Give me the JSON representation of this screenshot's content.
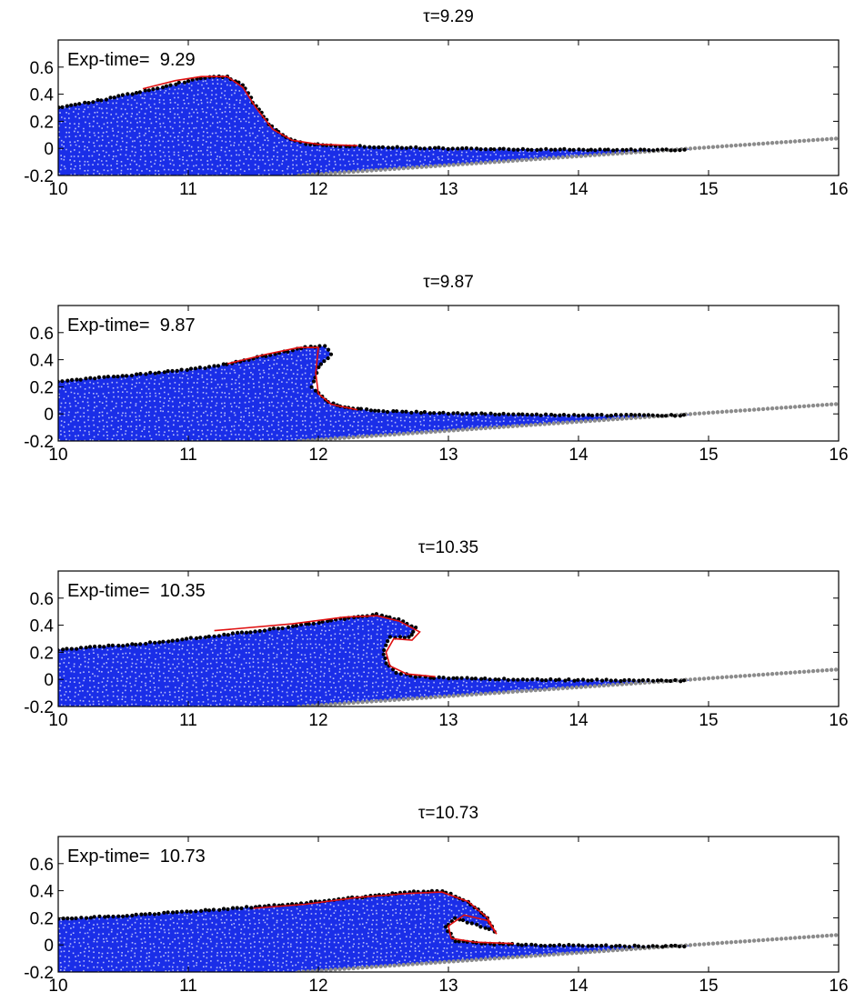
{
  "figure": {
    "xlim": [
      10,
      16
    ],
    "ylim": [
      -0.2,
      0.8
    ],
    "x_ticks": [
      "10",
      "11",
      "12",
      "13",
      "14",
      "15",
      "16"
    ],
    "y_ticks": [
      "-0.2",
      "0",
      "0.2",
      "0.4",
      "0.6"
    ],
    "colors": {
      "fluid_particles": "#1a2ee8",
      "surface_particles": "#000000",
      "bed_particles": "#8c8c8c",
      "experiment_profile": "#e01010",
      "axes": "#000000"
    }
  },
  "chart_data": [
    {
      "type": "scatter",
      "title": "τ=9.29",
      "annotation": "Exp-time=  9.29",
      "bed": {
        "x": [
          11.85,
          16.0
        ],
        "y": [
          -0.2,
          0.074
        ]
      },
      "fluid_end_x": 14.85,
      "free_surface": {
        "x": [
          10.0,
          10.4,
          10.8,
          11.1,
          11.3,
          11.42,
          11.5,
          11.62,
          11.75,
          11.9,
          12.1,
          12.5,
          13.0,
          13.5,
          14.0,
          14.3,
          14.85
        ],
        "y": [
          0.3,
          0.37,
          0.45,
          0.52,
          0.53,
          0.47,
          0.34,
          0.18,
          0.08,
          0.035,
          0.02,
          0.01,
          0.0,
          -0.005,
          -0.01,
          -0.01,
          -0.01
        ]
      },
      "experiment_profile": {
        "x": [
          10.65,
          10.9,
          11.1,
          11.3,
          11.42,
          11.52,
          11.65,
          11.8,
          12.0,
          12.3
        ],
        "y": [
          0.44,
          0.5,
          0.53,
          0.53,
          0.45,
          0.3,
          0.14,
          0.06,
          0.03,
          0.02
        ]
      }
    },
    {
      "type": "scatter",
      "title": "τ=9.87",
      "annotation": "Exp-time=  9.87",
      "bed": {
        "x": [
          11.85,
          16.0
        ],
        "y": [
          -0.2,
          0.074
        ]
      },
      "fluid_end_x": 14.85,
      "free_surface": {
        "x": [
          10.0,
          10.6,
          11.2,
          11.6,
          11.9,
          12.05,
          12.1,
          12.0,
          11.95,
          12.05,
          12.2,
          12.5,
          13.0,
          13.5,
          14.0,
          14.4,
          14.85
        ],
        "y": [
          0.24,
          0.29,
          0.35,
          0.43,
          0.49,
          0.5,
          0.44,
          0.34,
          0.2,
          0.1,
          0.045,
          0.02,
          0.005,
          -0.005,
          -0.01,
          -0.01,
          -0.01
        ]
      },
      "experiment_profile": {
        "x": [
          11.3,
          11.6,
          11.85,
          12.0,
          11.98,
          12.0,
          12.1,
          12.3
        ],
        "y": [
          0.37,
          0.44,
          0.49,
          0.49,
          0.3,
          0.15,
          0.07,
          0.03
        ]
      }
    },
    {
      "type": "scatter",
      "title": "τ=10.35",
      "annotation": "Exp-time=  10.35",
      "bed": {
        "x": [
          11.85,
          16.0
        ],
        "y": [
          -0.2,
          0.074
        ]
      },
      "fluid_end_x": 14.85,
      "free_surface": {
        "x": [
          10.0,
          10.6,
          11.2,
          11.8,
          12.2,
          12.45,
          12.62,
          12.75,
          12.7,
          12.55,
          12.5,
          12.52,
          12.6,
          12.75,
          13.0,
          13.5,
          14.0,
          14.5,
          14.85
        ],
        "y": [
          0.22,
          0.26,
          0.32,
          0.39,
          0.45,
          0.48,
          0.44,
          0.38,
          0.31,
          0.31,
          0.22,
          0.12,
          0.05,
          0.02,
          0.01,
          0.0,
          -0.005,
          -0.01,
          -0.01
        ]
      },
      "experiment_profile": {
        "x": [
          11.2,
          11.8,
          12.2,
          12.45,
          12.62,
          12.78,
          12.72,
          12.58,
          12.52,
          12.55,
          12.68,
          12.9
        ],
        "y": [
          0.36,
          0.41,
          0.46,
          0.47,
          0.43,
          0.35,
          0.29,
          0.3,
          0.2,
          0.1,
          0.04,
          0.02
        ]
      }
    },
    {
      "type": "scatter",
      "title": "τ=10.73",
      "annotation": "Exp-time=  10.73",
      "bed": {
        "x": [
          11.85,
          16.0
        ],
        "y": [
          -0.2,
          0.074
        ]
      },
      "fluid_end_x": 14.85,
      "free_surface": {
        "x": [
          10.0,
          10.6,
          11.2,
          11.8,
          12.3,
          12.7,
          12.95,
          13.15,
          13.3,
          13.35,
          13.05,
          12.98,
          13.05,
          13.25,
          13.6,
          14.0,
          14.5,
          14.85
        ],
        "y": [
          0.19,
          0.22,
          0.26,
          0.3,
          0.35,
          0.39,
          0.4,
          0.32,
          0.2,
          0.1,
          0.2,
          0.13,
          0.03,
          0.01,
          0.0,
          -0.005,
          -0.01,
          -0.01
        ]
      },
      "experiment_profile": {
        "x": [
          11.5,
          11.9,
          12.3,
          12.7,
          12.95,
          13.15,
          13.3,
          13.37,
          13.3,
          13.12,
          13.0,
          13.02,
          13.2,
          13.5
        ],
        "y": [
          0.27,
          0.3,
          0.35,
          0.38,
          0.39,
          0.32,
          0.2,
          0.08,
          0.18,
          0.22,
          0.14,
          0.05,
          0.02,
          0.01
        ]
      }
    }
  ]
}
